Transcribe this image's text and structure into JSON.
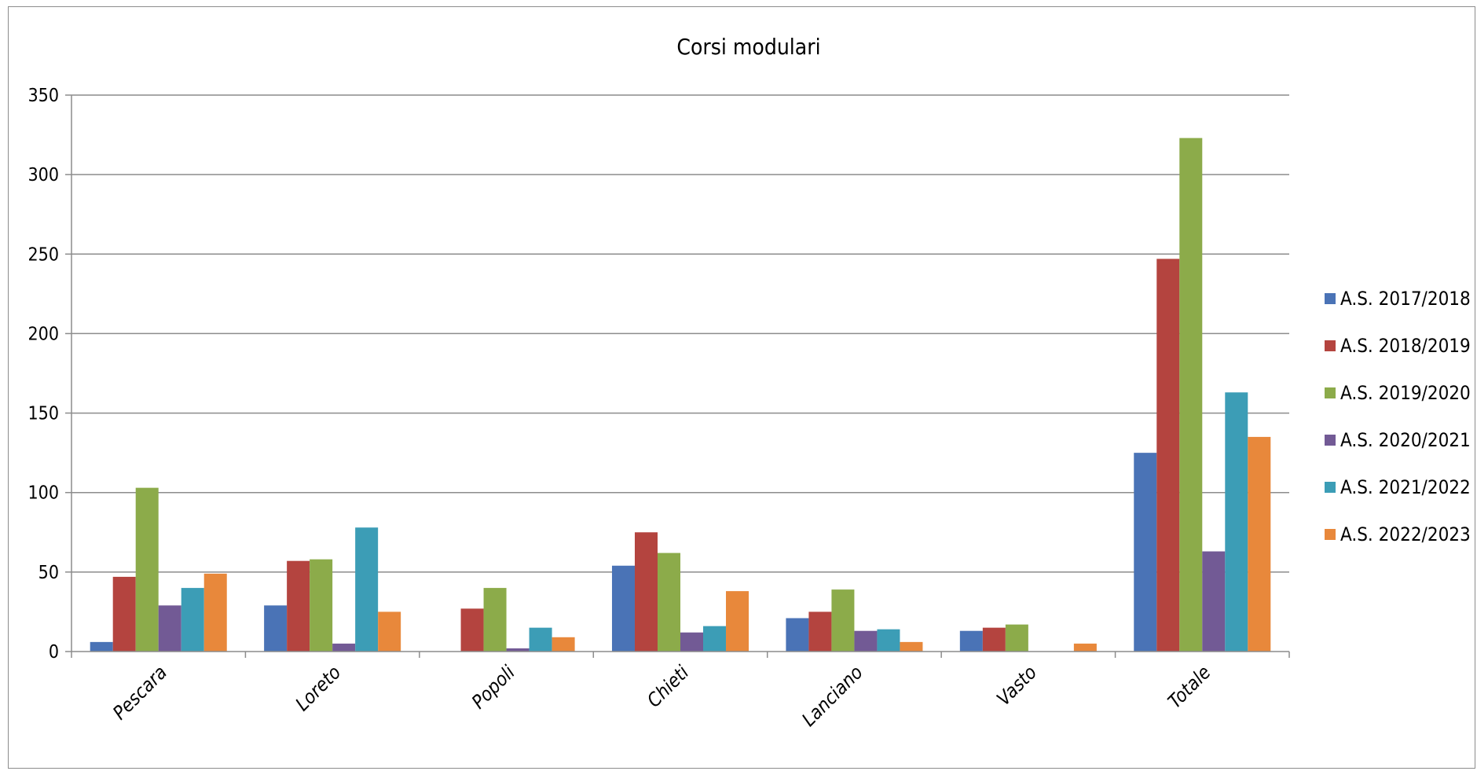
{
  "chart_data": {
    "type": "bar",
    "title": "Corsi modulari",
    "xlabel": "",
    "ylabel": "",
    "ylim": [
      0,
      350
    ],
    "yticks": [
      0,
      50,
      100,
      150,
      200,
      250,
      300,
      350
    ],
    "grid": true,
    "legend_position": "right",
    "categories": [
      "Pescara",
      "Loreto",
      "Popoli",
      "Chieti",
      "Lanciano",
      "Vasto",
      "Totale"
    ],
    "series": [
      {
        "name": "A.S. 2017/2018",
        "color": "#4a73b6",
        "values": [
          6,
          29,
          0,
          54,
          21,
          13,
          125
        ]
      },
      {
        "name": "A.S. 2018/2019",
        "color": "#b4443f",
        "values": [
          47,
          57,
          27,
          75,
          25,
          15,
          247
        ]
      },
      {
        "name": "A.S. 2019/2020",
        "color": "#8cab4a",
        "values": [
          103,
          58,
          40,
          62,
          39,
          17,
          323
        ]
      },
      {
        "name": "A.S. 2020/2021",
        "color": "#725a95",
        "values": [
          29,
          5,
          2,
          12,
          13,
          0,
          63
        ]
      },
      {
        "name": "A.S. 2021/2022",
        "color": "#3c9db6",
        "values": [
          40,
          78,
          15,
          16,
          14,
          0,
          163
        ]
      },
      {
        "name": "A.S. 2022/2023",
        "color": "#e8883b",
        "values": [
          49,
          25,
          9,
          38,
          6,
          5,
          135
        ]
      }
    ]
  }
}
